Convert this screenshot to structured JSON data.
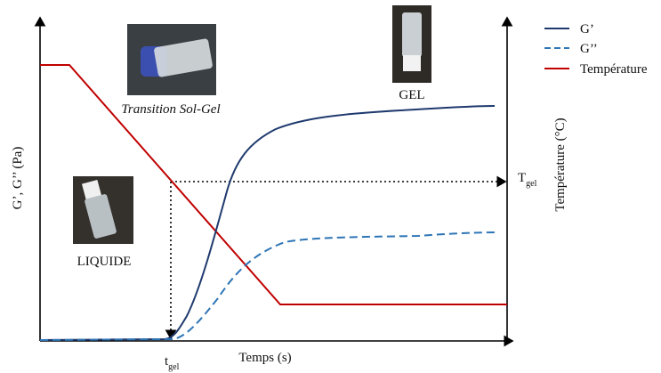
{
  "legend": {
    "g_prime": "G’",
    "g_double": "G’’",
    "temperature": "Température"
  },
  "axes": {
    "left": "G’, G’’ (Pa)",
    "right": "Température (°C)",
    "bottom": "Temps (s)"
  },
  "markers": {
    "T_gel": {
      "main": "T",
      "sub": "gel"
    },
    "t_gel": {
      "main": "t",
      "sub": "gel"
    }
  },
  "photos": {
    "transition": "Transition Sol-Gel",
    "gel": "GEL",
    "liquid": "LIQUIDE"
  }
}
